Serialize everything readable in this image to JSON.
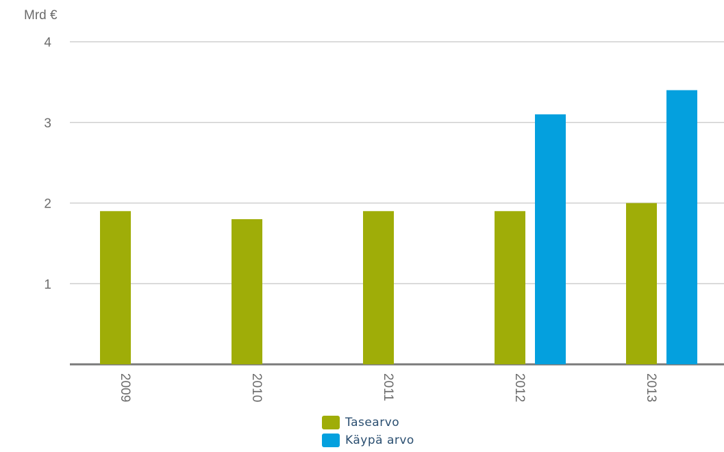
{
  "chart_data": {
    "type": "bar",
    "ylabel": "Mrd €",
    "categories": [
      "2009",
      "2010",
      "2011",
      "2012",
      "2013"
    ],
    "ylim": [
      0,
      4
    ],
    "yticks": [
      1,
      2,
      3,
      4
    ],
    "grid": true,
    "legend_position": "bottom",
    "series": [
      {
        "name": "Tasearvo",
        "color": "#9fad08",
        "values": [
          1.9,
          1.8,
          1.9,
          1.9,
          2.0
        ]
      },
      {
        "name": "Käypä arvo",
        "color": "#04a0de",
        "values": [
          null,
          null,
          null,
          3.1,
          3.4
        ]
      }
    ]
  }
}
